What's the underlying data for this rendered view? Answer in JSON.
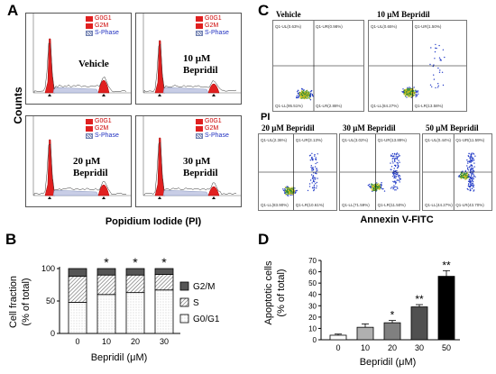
{
  "panels": {
    "a": "A",
    "b": "B",
    "c": "C",
    "d": "D"
  },
  "panel_a": {
    "ylabel": "Counts",
    "xlabel": "Popidium Iodide (PI)",
    "legend": [
      "G0G1",
      "G2M",
      "S-Phase"
    ],
    "histograms": [
      {
        "treatment_line1": "Vehicle",
        "treatment_line2": ""
      },
      {
        "treatment_line1": "10 μM",
        "treatment_line2": "Bepridil"
      },
      {
        "treatment_line1": "20 μM",
        "treatment_line2": "Bepridil"
      },
      {
        "treatment_line1": "30 μM",
        "treatment_line2": "Bepridil"
      }
    ]
  },
  "panel_c": {
    "ylabel": "PI",
    "xlabel": "Annexin V-FITC",
    "plots": [
      {
        "title": "Vehicle",
        "ul": "Q1-UL(0.63%)",
        "ur": "Q1-UR(0.98%)",
        "ll": "Q1-LL(95.51%)",
        "lr": "Q1-LR(2.88%)"
      },
      {
        "title": "10 μM Bepridil",
        "ul": "Q1-UL(0.65%)",
        "ur": "Q1-UR(1.50%)",
        "ll": "Q1-LL(84.27%)",
        "lr": "Q1-LR(13.58%)"
      },
      {
        "title": "20 μM Bepridil",
        "ul": "Q1-UL(2.36%)",
        "ur": "Q1-UR(3.13%)",
        "ll": "Q1-LL(83.90%)",
        "lr": "Q1-LR(10.61%)"
      },
      {
        "title": "30 μM Bepridil",
        "ul": "Q1-UL(3.02%)",
        "ur": "Q1-UR(13.89%)",
        "ll": "Q1-LL(71.59%)",
        "lr": "Q1-LR(11.50%)"
      },
      {
        "title": "50 μM Bepridil",
        "ul": "Q1-UL(0.44%)",
        "ur": "Q1-UR(11.59%)",
        "ll": "Q1-LL(44.27%)",
        "lr": "Q1-LR(43.70%)"
      }
    ]
  },
  "chart_data": [
    {
      "type": "bar",
      "stacked": true,
      "categories": [
        "0",
        "10",
        "20",
        "30"
      ],
      "series": [
        {
          "name": "G0/G1",
          "values": [
            48,
            60,
            63,
            67
          ],
          "color": "#ffffff"
        },
        {
          "name": "S",
          "values": [
            40,
            30,
            27,
            24
          ],
          "color": "#b0b0b0"
        },
        {
          "name": "G2/M",
          "values": [
            12,
            10,
            10,
            9
          ],
          "color": "#555555"
        }
      ],
      "annotations": [
        "",
        "*",
        "*",
        "*"
      ],
      "xlabel": "Bepridil (μM)",
      "ylabel": "Cell fraction (% of total)",
      "ylabel_line1": "Cell fraction",
      "ylabel_line2": "(% of total)",
      "ylim": [
        0,
        100
      ],
      "yticks": [
        "0",
        "50",
        "100"
      ],
      "legend": [
        "G2/M",
        "S",
        "G0/G1"
      ]
    },
    {
      "type": "bar",
      "categories": [
        "0",
        "10",
        "20",
        "30",
        "50"
      ],
      "values": [
        4,
        11,
        15,
        29,
        56
      ],
      "errors": [
        1,
        3,
        2,
        2,
        5
      ],
      "colors": [
        "#ffffff",
        "#b0b0b0",
        "#808080",
        "#505050",
        "#000000"
      ],
      "annotations": [
        "",
        "",
        "*",
        "**",
        "**"
      ],
      "xlabel": "Bepridil (μM)",
      "ylabel": "Apoptotic cells (% of total)",
      "ylabel_line1": "Apoptotic cells",
      "ylabel_line2": "(% of total)",
      "ylim": [
        0,
        70
      ],
      "yticks": [
        "0",
        "10",
        "20",
        "30",
        "40",
        "50",
        "60",
        "70"
      ]
    }
  ]
}
